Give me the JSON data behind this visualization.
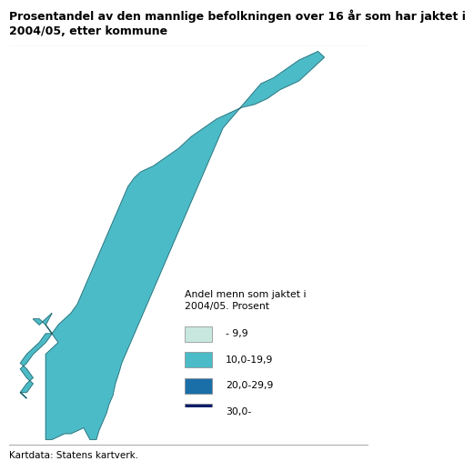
{
  "title_line1": "Prosentandel av den mannlige befolkningen over 16 år som har jaktet i",
  "title_line2": "2004/05, etter kommune",
  "legend_title": "Andel menn som jaktet i\n2004/05. Prosent",
  "legend_entries": [
    {
      "label": "- 9,9",
      "color": "#c8e8df"
    },
    {
      "label": "10,0-19,9",
      "color": "#4bbbc8"
    },
    {
      "label": "20,0-29,9",
      "color": "#1a6fa8"
    },
    {
      "label": "30,0-",
      "color": "#0c1d6b"
    }
  ],
  "footer": "Kartdata: Statens kartverk.",
  "bg_color": "#ffffff",
  "sea_color": "#ffffff",
  "outline_color": "#333333",
  "title_fontsize": 9.0,
  "legend_fontsize": 7.8,
  "footer_fontsize": 7.5,
  "lon_min": 4.5,
  "lon_max": 31.5,
  "lat_min": 57.8,
  "lat_max": 71.2
}
